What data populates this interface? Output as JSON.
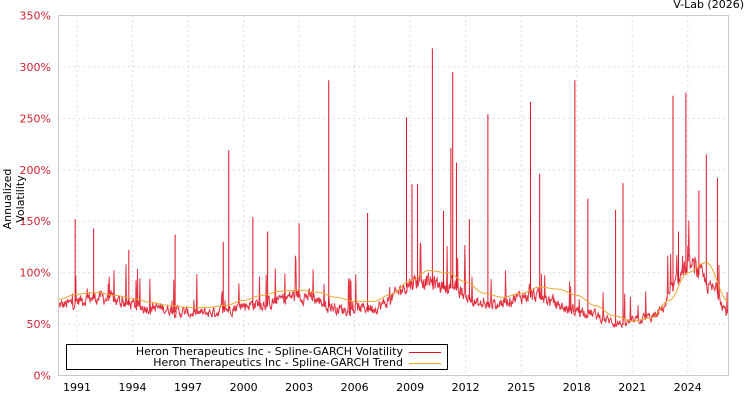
{
  "chart_data": {
    "type": "line",
    "title": "",
    "credit": "V-Lab (2026)",
    "xlabel": "",
    "ylabel": "Annualized Volatility",
    "ylim": [
      0,
      350
    ],
    "y_ticks": [
      "0%",
      "50%",
      "100%",
      "150%",
      "200%",
      "250%",
      "300%",
      "350%"
    ],
    "x_ticks": [
      "1991",
      "1994",
      "1997",
      "2000",
      "2003",
      "2006",
      "2009",
      "2012",
      "2015",
      "2018",
      "2021",
      "2024"
    ],
    "xlim": [
      1990,
      2026.2
    ],
    "grid": true,
    "legend_position": "bottom-left inside",
    "series": [
      {
        "name": "Heron Therapeutics Inc - Spline-GARCH Volatility",
        "color": "#dd1122",
        "description": "daily volatility, noisy with spikes",
        "baseline_approx": {
          "x": [
            1990,
            1992,
            1995,
            1997.5,
            2001,
            2003,
            2005.5,
            2007,
            2009.5,
            2011,
            2013,
            2015.5,
            2018,
            2020.5,
            2022,
            2024.2,
            2025.5,
            2026.2
          ],
          "y": [
            70,
            78,
            68,
            62,
            72,
            80,
            66,
            68,
            95,
            90,
            70,
            80,
            65,
            52,
            58,
            108,
            85,
            62
          ]
        },
        "spikes": [
          {
            "x": 1990.9,
            "y": 152
          },
          {
            "x": 1991.9,
            "y": 143
          },
          {
            "x": 1993.8,
            "y": 122
          },
          {
            "x": 1996.3,
            "y": 137
          },
          {
            "x": 1998.9,
            "y": 130
          },
          {
            "x": 1999.2,
            "y": 219
          },
          {
            "x": 2000.5,
            "y": 154
          },
          {
            "x": 2001.3,
            "y": 140
          },
          {
            "x": 2003.0,
            "y": 148
          },
          {
            "x": 2004.6,
            "y": 287
          },
          {
            "x": 2006.7,
            "y": 158
          },
          {
            "x": 2008.8,
            "y": 251
          },
          {
            "x": 2009.1,
            "y": 186
          },
          {
            "x": 2009.4,
            "y": 186
          },
          {
            "x": 2010.2,
            "y": 318
          },
          {
            "x": 2010.8,
            "y": 160
          },
          {
            "x": 2011.3,
            "y": 295
          },
          {
            "x": 2011.2,
            "y": 221
          },
          {
            "x": 2011.5,
            "y": 207
          },
          {
            "x": 2012.2,
            "y": 152
          },
          {
            "x": 2013.2,
            "y": 254
          },
          {
            "x": 2015.5,
            "y": 266
          },
          {
            "x": 2016.0,
            "y": 196
          },
          {
            "x": 2017.9,
            "y": 287
          },
          {
            "x": 2018.6,
            "y": 172
          },
          {
            "x": 2020.1,
            "y": 161
          },
          {
            "x": 2020.5,
            "y": 187
          },
          {
            "x": 2023.2,
            "y": 272
          },
          {
            "x": 2023.5,
            "y": 140
          },
          {
            "x": 2023.9,
            "y": 275
          },
          {
            "x": 2024.6,
            "y": 180
          },
          {
            "x": 2025.0,
            "y": 215
          },
          {
            "x": 2025.6,
            "y": 192
          }
        ]
      },
      {
        "name": "Heron Therapeutics Inc - Spline-GARCH Trend",
        "color": "#e8a830",
        "x": [
          1990,
          1991,
          1992,
          1993,
          1994,
          1995,
          1996,
          1997,
          1998,
          1999,
          2000,
          2001,
          2002,
          2003,
          2004,
          2005,
          2006,
          2007,
          2008,
          2009,
          2010,
          2011,
          2012,
          2013,
          2014,
          2015,
          2016,
          2017,
          2018,
          2019,
          2020,
          2021,
          2022,
          2023,
          2024,
          2025,
          2026.2
        ],
        "y": [
          74,
          79,
          81,
          78,
          75,
          71,
          68,
          66,
          66,
          68,
          73,
          78,
          82,
          83,
          81,
          76,
          72,
          72,
          79,
          92,
          102,
          100,
          91,
          80,
          76,
          80,
          86,
          84,
          78,
          68,
          58,
          53,
          56,
          73,
          100,
          110,
          72
        ]
      }
    ]
  },
  "legend": {
    "volatility_label": "Heron Therapeutics Inc - Spline-GARCH Volatility",
    "trend_label": "Heron Therapeutics Inc - Spline-GARCH Trend"
  },
  "header": {
    "credit": "V-Lab (2026)"
  },
  "axes": {
    "ylabel": "Annualized Volatility"
  }
}
